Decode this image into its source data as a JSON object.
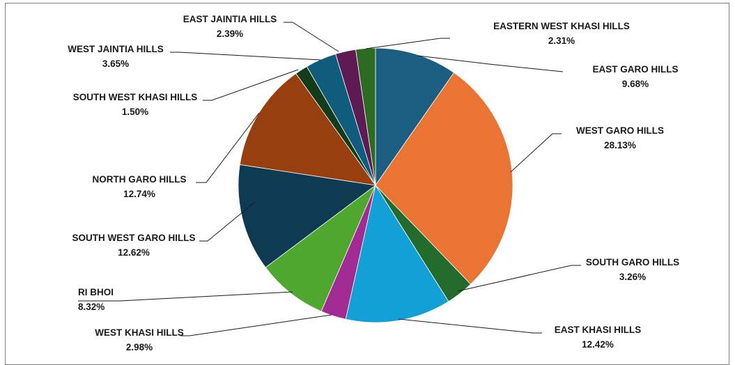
{
  "chart_data": {
    "type": "pie",
    "title": "",
    "slices": [
      {
        "name": "EAST GARO HILLS",
        "value": 9.68,
        "label": "9.68%",
        "color": "#1b5e82"
      },
      {
        "name": "WEST GARO HILLS",
        "value": 28.13,
        "label": "28.13%",
        "color": "#e97433"
      },
      {
        "name": "SOUTH GARO HILLS",
        "value": 3.26,
        "label": "3.26%",
        "color": "#236b2c"
      },
      {
        "name": "EAST KHASI HILLS",
        "value": 12.42,
        "label": "12.42%",
        "color": "#13a0d6"
      },
      {
        "name": "WEST KHASI HILLS",
        "value": 2.98,
        "label": "2.98%",
        "color": "#a12b93"
      },
      {
        "name": "RI BHOI",
        "value": 8.32,
        "label": "8.32%",
        "color": "#4ea72e"
      },
      {
        "name": "SOUTH WEST GARO HILLS",
        "value": 12.62,
        "label": "12.62%",
        "color": "#0e3a52"
      },
      {
        "name": "NORTH GARO HILLS",
        "value": 12.74,
        "label": "12.74%",
        "color": "#973f0e"
      },
      {
        "name": "SOUTH WEST KHASI HILLS",
        "value": 1.5,
        "label": "1.50%",
        "color": "#143b1a"
      },
      {
        "name": "WEST JAINTIA HILLS",
        "value": 3.65,
        "label": "3.65%",
        "color": "#0f5c7d"
      },
      {
        "name": "EAST JAINTIA HILLS",
        "value": 2.39,
        "label": "2.39%",
        "color": "#5e1a52"
      },
      {
        "name": "EASTERN WEST KHASI HILLS",
        "value": 2.31,
        "label": "2.31%",
        "color": "#2e6b22"
      }
    ]
  }
}
